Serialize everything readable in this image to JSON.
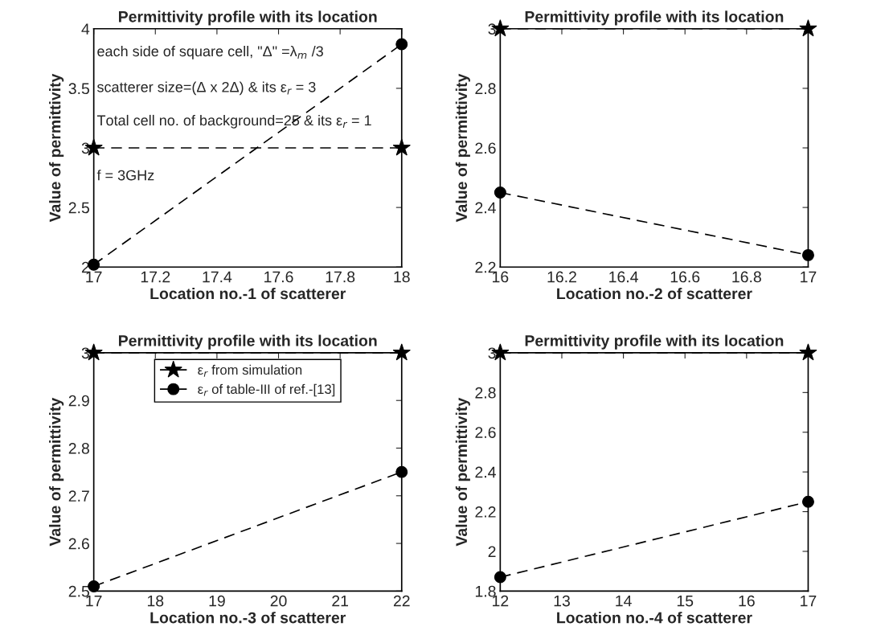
{
  "chart_data": [
    {
      "type": "line",
      "title": "Permittivity profile with its location",
      "xlabel": "Location no.-1 of scatterer",
      "ylabel": "Value of permittivity",
      "x": [
        17,
        18
      ],
      "xlim": [
        17,
        18
      ],
      "xticks": [
        17,
        17.2,
        17.4,
        17.6,
        17.8,
        18
      ],
      "ylim": [
        2,
        4
      ],
      "yticks": [
        2,
        2.5,
        3,
        3.5,
        4
      ],
      "line_style": "dashed",
      "grid": false,
      "legend": false,
      "series": [
        {
          "color": "#000000",
          "marker": "star",
          "values": [
            3,
            3
          ]
        },
        {
          "color": "#000000",
          "marker": "circle",
          "values": [
            2.02,
            3.87
          ]
        }
      ],
      "annotations": [
        "each side of square cell, \"Δ\" =λ$_{m}$ /3",
        "scatterer size=(Δ x 2Δ) & its ε$_{r}$ = 3",
        "Total cell no. of background=25 & its ε$_{r}$ = 1",
        "f = 3GHz"
      ]
    },
    {
      "type": "line",
      "title": "Permittivity profile with its location",
      "xlabel": "Location no.-2 of scatterer",
      "ylabel": "Value of permittivity",
      "x": [
        16,
        17
      ],
      "xlim": [
        16,
        17
      ],
      "xticks": [
        16,
        16.2,
        16.4,
        16.6,
        16.8,
        17
      ],
      "ylim": [
        2.2,
        3
      ],
      "yticks": [
        2.2,
        2.4,
        2.6,
        2.8,
        3
      ],
      "line_style": "dashed",
      "grid": false,
      "legend": false,
      "series": [
        {
          "color": "#000000",
          "marker": "star",
          "values": [
            3,
            3
          ]
        },
        {
          "color": "#000000",
          "marker": "circle",
          "values": [
            2.45,
            2.24
          ]
        }
      ]
    },
    {
      "type": "line",
      "title": "Permittivity profile with its location",
      "xlabel": "Location no.-3 of scatterer",
      "ylabel": "Value of permittivity",
      "x": [
        17,
        22
      ],
      "xlim": [
        17,
        22
      ],
      "xticks": [
        17,
        18,
        19,
        20,
        21,
        22
      ],
      "ylim": [
        2.5,
        3
      ],
      "yticks": [
        2.5,
        2.6,
        2.7,
        2.8,
        2.9,
        3
      ],
      "line_style": "dashed",
      "grid": false,
      "legend": "top",
      "series": [
        {
          "name": "ε$_{r}$ from simulation",
          "color": "#000000",
          "marker": "star",
          "values": [
            3,
            3
          ]
        },
        {
          "name": "ε$_{r}$ of table-III of ref.-[13]",
          "color": "#000000",
          "marker": "circle",
          "values": [
            2.51,
            2.75
          ]
        }
      ]
    },
    {
      "type": "line",
      "title": "Permittivity profile with its location",
      "xlabel": "Location no.-4 of scatterer",
      "ylabel": "Value of permittivity",
      "x": [
        12,
        17
      ],
      "xlim": [
        12,
        17
      ],
      "xticks": [
        12,
        13,
        14,
        15,
        16,
        17
      ],
      "ylim": [
        1.8,
        3
      ],
      "yticks": [
        1.8,
        2,
        2.2,
        2.4,
        2.6,
        2.8,
        3
      ],
      "line_style": "dashed",
      "grid": false,
      "legend": false,
      "series": [
        {
          "color": "#000000",
          "marker": "star",
          "values": [
            3,
            3
          ]
        },
        {
          "color": "#000000",
          "marker": "circle",
          "values": [
            1.87,
            2.25
          ]
        }
      ]
    }
  ]
}
